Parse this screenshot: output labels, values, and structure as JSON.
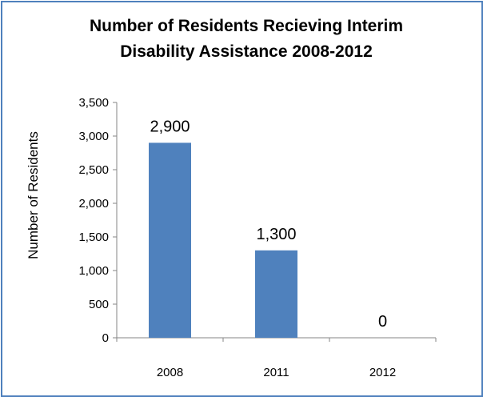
{
  "chart_data": {
    "type": "bar",
    "title": "Number of Residents Recieving Interim Disability Assistance 2008-2012",
    "title_lines": [
      "Number of Residents Recieving Interim",
      "Disability Assistance 2008-2012"
    ],
    "xlabel": "",
    "ylabel": "Number of Residents",
    "categories": [
      "2008",
      "2011",
      "2012"
    ],
    "values": [
      2900,
      1300,
      0
    ],
    "data_labels": [
      "2,900",
      "1,300",
      "0"
    ],
    "ylim": [
      0,
      3500
    ],
    "yticks": [
      0,
      500,
      1000,
      1500,
      2000,
      2500,
      3000,
      3500
    ],
    "ytick_labels": [
      "0",
      "500",
      "1,000",
      "1,500",
      "2,000",
      "2,500",
      "3,000",
      "3,500"
    ],
    "bar_color": "#4f81bd",
    "border_color": "#4f81bd",
    "grid": false,
    "legend": "none"
  }
}
